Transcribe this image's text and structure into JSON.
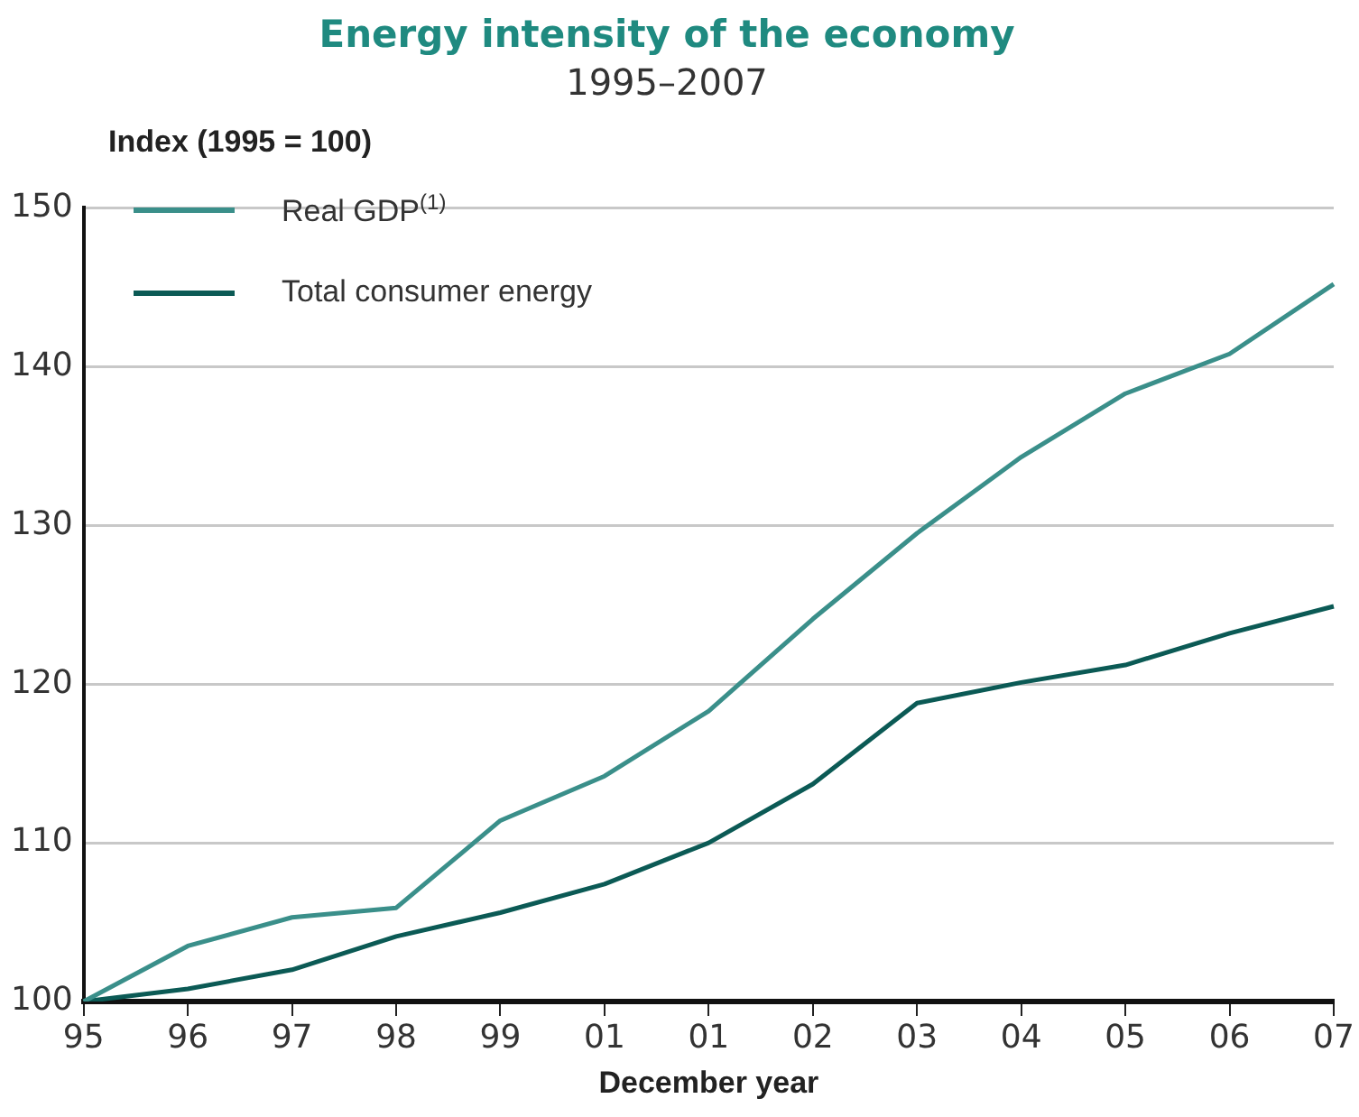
{
  "chart_data": {
    "type": "line",
    "title": "Energy intensity of the economy",
    "subtitle": "1995–2007",
    "ylabel": "Index (1995 = 100)",
    "xlabel": "December year",
    "categories": [
      "95",
      "96",
      "97",
      "98",
      "99",
      "01",
      "01",
      "02",
      "03",
      "04",
      "05",
      "06",
      "07"
    ],
    "series": [
      {
        "name": "Real GDP$^{(1)}$",
        "color": "#3a8f8a",
        "values": [
          100,
          103.5,
          105.3,
          105.9,
          111.4,
          114.2,
          118.3,
          124.1,
          129.5,
          134.3,
          138.3,
          140.8,
          145.2
        ]
      },
      {
        "name": "Total consumer energy",
        "color": "#0b5a55",
        "values": [
          100,
          100.8,
          102.0,
          104.1,
          105.6,
          107.4,
          110.0,
          113.7,
          118.8,
          120.1,
          121.2,
          123.2,
          124.9
        ]
      }
    ],
    "ylim": [
      100,
      150
    ],
    "yticks": [
      100,
      110,
      120,
      130,
      140,
      150
    ],
    "grid": "y",
    "legend": "top left",
    "marker": "none",
    "line_style": "solid"
  }
}
